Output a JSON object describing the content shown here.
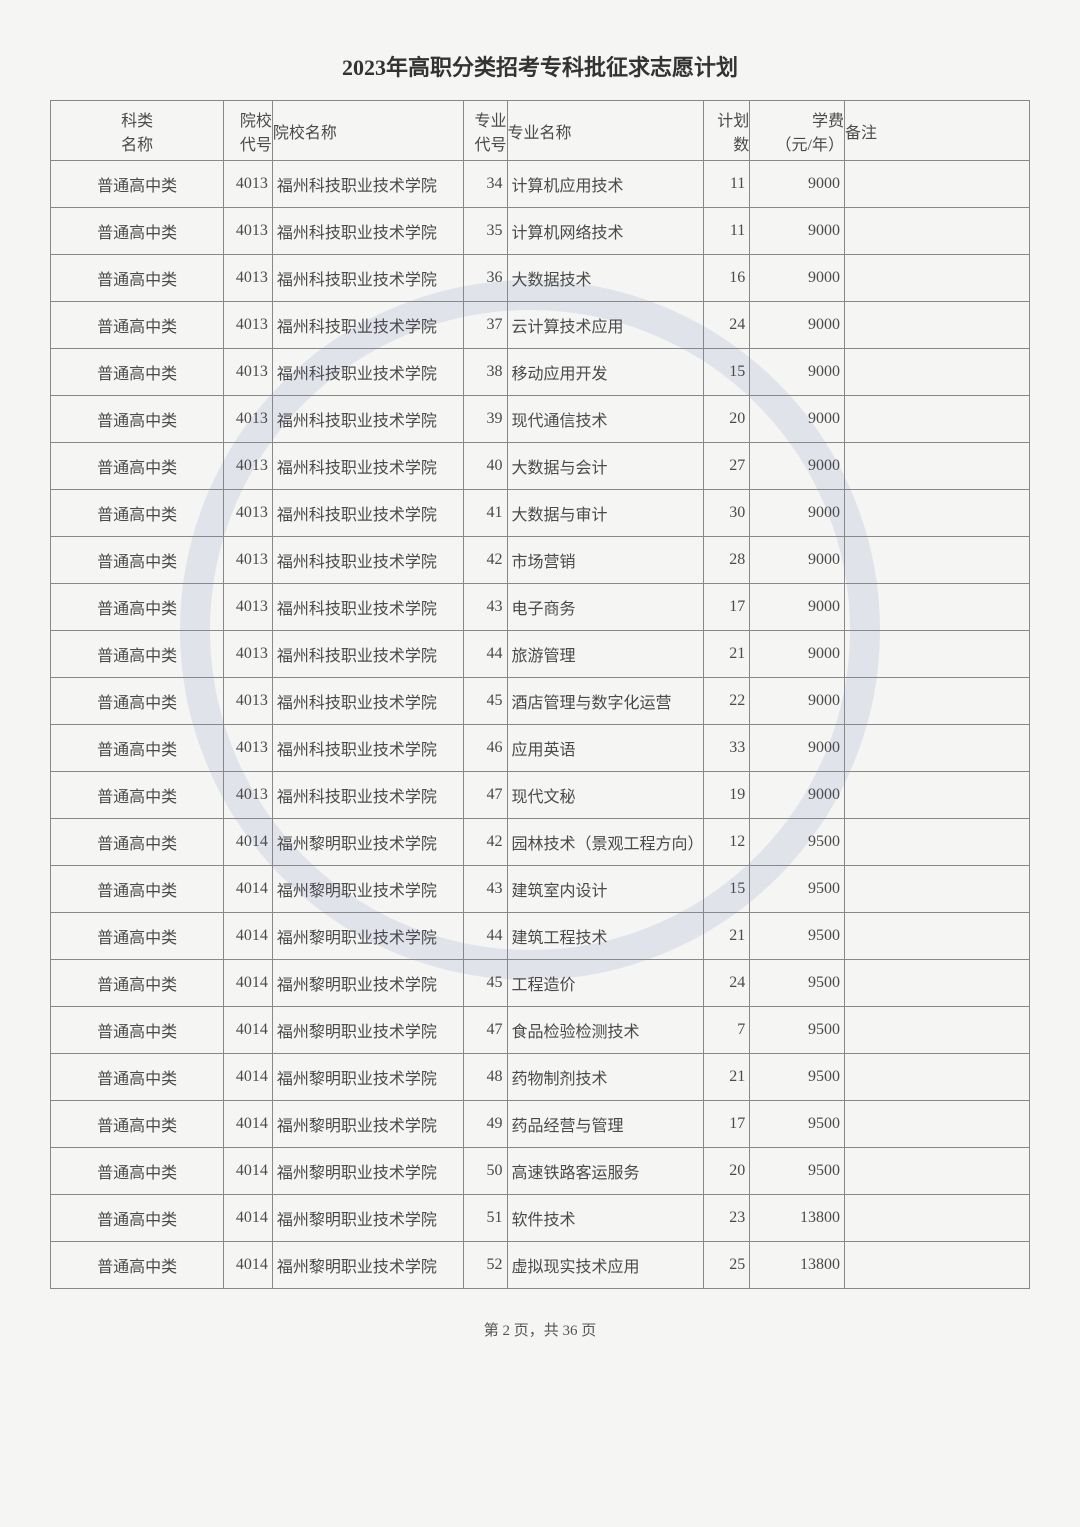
{
  "title": "2023年高职分类招考专科批征求志愿计划",
  "headers": {
    "category": "科类\n名称",
    "school_code": "院校\n代号",
    "school_name": "院校名称",
    "major_code": "专业\n代号",
    "major_name": "专业名称",
    "plan": "计划\n数",
    "fee": "学费\n（元/年）",
    "note": "备注"
  },
  "rows": [
    {
      "category": "普通高中类",
      "school_code": "4013",
      "school_name": "福州科技职业技术学院",
      "major_code": "34",
      "major_name": "计算机应用技术",
      "plan": "11",
      "fee": "9000",
      "note": ""
    },
    {
      "category": "普通高中类",
      "school_code": "4013",
      "school_name": "福州科技职业技术学院",
      "major_code": "35",
      "major_name": "计算机网络技术",
      "plan": "11",
      "fee": "9000",
      "note": ""
    },
    {
      "category": "普通高中类",
      "school_code": "4013",
      "school_name": "福州科技职业技术学院",
      "major_code": "36",
      "major_name": "大数据技术",
      "plan": "16",
      "fee": "9000",
      "note": ""
    },
    {
      "category": "普通高中类",
      "school_code": "4013",
      "school_name": "福州科技职业技术学院",
      "major_code": "37",
      "major_name": "云计算技术应用",
      "plan": "24",
      "fee": "9000",
      "note": ""
    },
    {
      "category": "普通高中类",
      "school_code": "4013",
      "school_name": "福州科技职业技术学院",
      "major_code": "38",
      "major_name": "移动应用开发",
      "plan": "15",
      "fee": "9000",
      "note": ""
    },
    {
      "category": "普通高中类",
      "school_code": "4013",
      "school_name": "福州科技职业技术学院",
      "major_code": "39",
      "major_name": "现代通信技术",
      "plan": "20",
      "fee": "9000",
      "note": ""
    },
    {
      "category": "普通高中类",
      "school_code": "4013",
      "school_name": "福州科技职业技术学院",
      "major_code": "40",
      "major_name": "大数据与会计",
      "plan": "27",
      "fee": "9000",
      "note": ""
    },
    {
      "category": "普通高中类",
      "school_code": "4013",
      "school_name": "福州科技职业技术学院",
      "major_code": "41",
      "major_name": "大数据与审计",
      "plan": "30",
      "fee": "9000",
      "note": ""
    },
    {
      "category": "普通高中类",
      "school_code": "4013",
      "school_name": "福州科技职业技术学院",
      "major_code": "42",
      "major_name": "市场营销",
      "plan": "28",
      "fee": "9000",
      "note": ""
    },
    {
      "category": "普通高中类",
      "school_code": "4013",
      "school_name": "福州科技职业技术学院",
      "major_code": "43",
      "major_name": "电子商务",
      "plan": "17",
      "fee": "9000",
      "note": ""
    },
    {
      "category": "普通高中类",
      "school_code": "4013",
      "school_name": "福州科技职业技术学院",
      "major_code": "44",
      "major_name": "旅游管理",
      "plan": "21",
      "fee": "9000",
      "note": ""
    },
    {
      "category": "普通高中类",
      "school_code": "4013",
      "school_name": "福州科技职业技术学院",
      "major_code": "45",
      "major_name": "酒店管理与数字化运营",
      "plan": "22",
      "fee": "9000",
      "note": ""
    },
    {
      "category": "普通高中类",
      "school_code": "4013",
      "school_name": "福州科技职业技术学院",
      "major_code": "46",
      "major_name": "应用英语",
      "plan": "33",
      "fee": "9000",
      "note": ""
    },
    {
      "category": "普通高中类",
      "school_code": "4013",
      "school_name": "福州科技职业技术学院",
      "major_code": "47",
      "major_name": "现代文秘",
      "plan": "19",
      "fee": "9000",
      "note": ""
    },
    {
      "category": "普通高中类",
      "school_code": "4014",
      "school_name": "福州黎明职业技术学院",
      "major_code": "42",
      "major_name": "园林技术（景观工程方向）",
      "plan": "12",
      "fee": "9500",
      "note": ""
    },
    {
      "category": "普通高中类",
      "school_code": "4014",
      "school_name": "福州黎明职业技术学院",
      "major_code": "43",
      "major_name": "建筑室内设计",
      "plan": "15",
      "fee": "9500",
      "note": ""
    },
    {
      "category": "普通高中类",
      "school_code": "4014",
      "school_name": "福州黎明职业技术学院",
      "major_code": "44",
      "major_name": "建筑工程技术",
      "plan": "21",
      "fee": "9500",
      "note": ""
    },
    {
      "category": "普通高中类",
      "school_code": "4014",
      "school_name": "福州黎明职业技术学院",
      "major_code": "45",
      "major_name": "工程造价",
      "plan": "24",
      "fee": "9500",
      "note": ""
    },
    {
      "category": "普通高中类",
      "school_code": "4014",
      "school_name": "福州黎明职业技术学院",
      "major_code": "47",
      "major_name": "食品检验检测技术",
      "plan": "7",
      "fee": "9500",
      "note": ""
    },
    {
      "category": "普通高中类",
      "school_code": "4014",
      "school_name": "福州黎明职业技术学院",
      "major_code": "48",
      "major_name": "药物制剂技术",
      "plan": "21",
      "fee": "9500",
      "note": ""
    },
    {
      "category": "普通高中类",
      "school_code": "4014",
      "school_name": "福州黎明职业技术学院",
      "major_code": "49",
      "major_name": "药品经营与管理",
      "plan": "17",
      "fee": "9500",
      "note": ""
    },
    {
      "category": "普通高中类",
      "school_code": "4014",
      "school_name": "福州黎明职业技术学院",
      "major_code": "50",
      "major_name": "高速铁路客运服务",
      "plan": "20",
      "fee": "9500",
      "note": ""
    },
    {
      "category": "普通高中类",
      "school_code": "4014",
      "school_name": "福州黎明职业技术学院",
      "major_code": "51",
      "major_name": "软件技术",
      "plan": "23",
      "fee": "13800",
      "note": ""
    },
    {
      "category": "普通高中类",
      "school_code": "4014",
      "school_name": "福州黎明职业技术学院",
      "major_code": "52",
      "major_name": "虚拟现实技术应用",
      "plan": "25",
      "fee": "13800",
      "note": ""
    }
  ],
  "pager": "第 2 页，共 36 页"
}
